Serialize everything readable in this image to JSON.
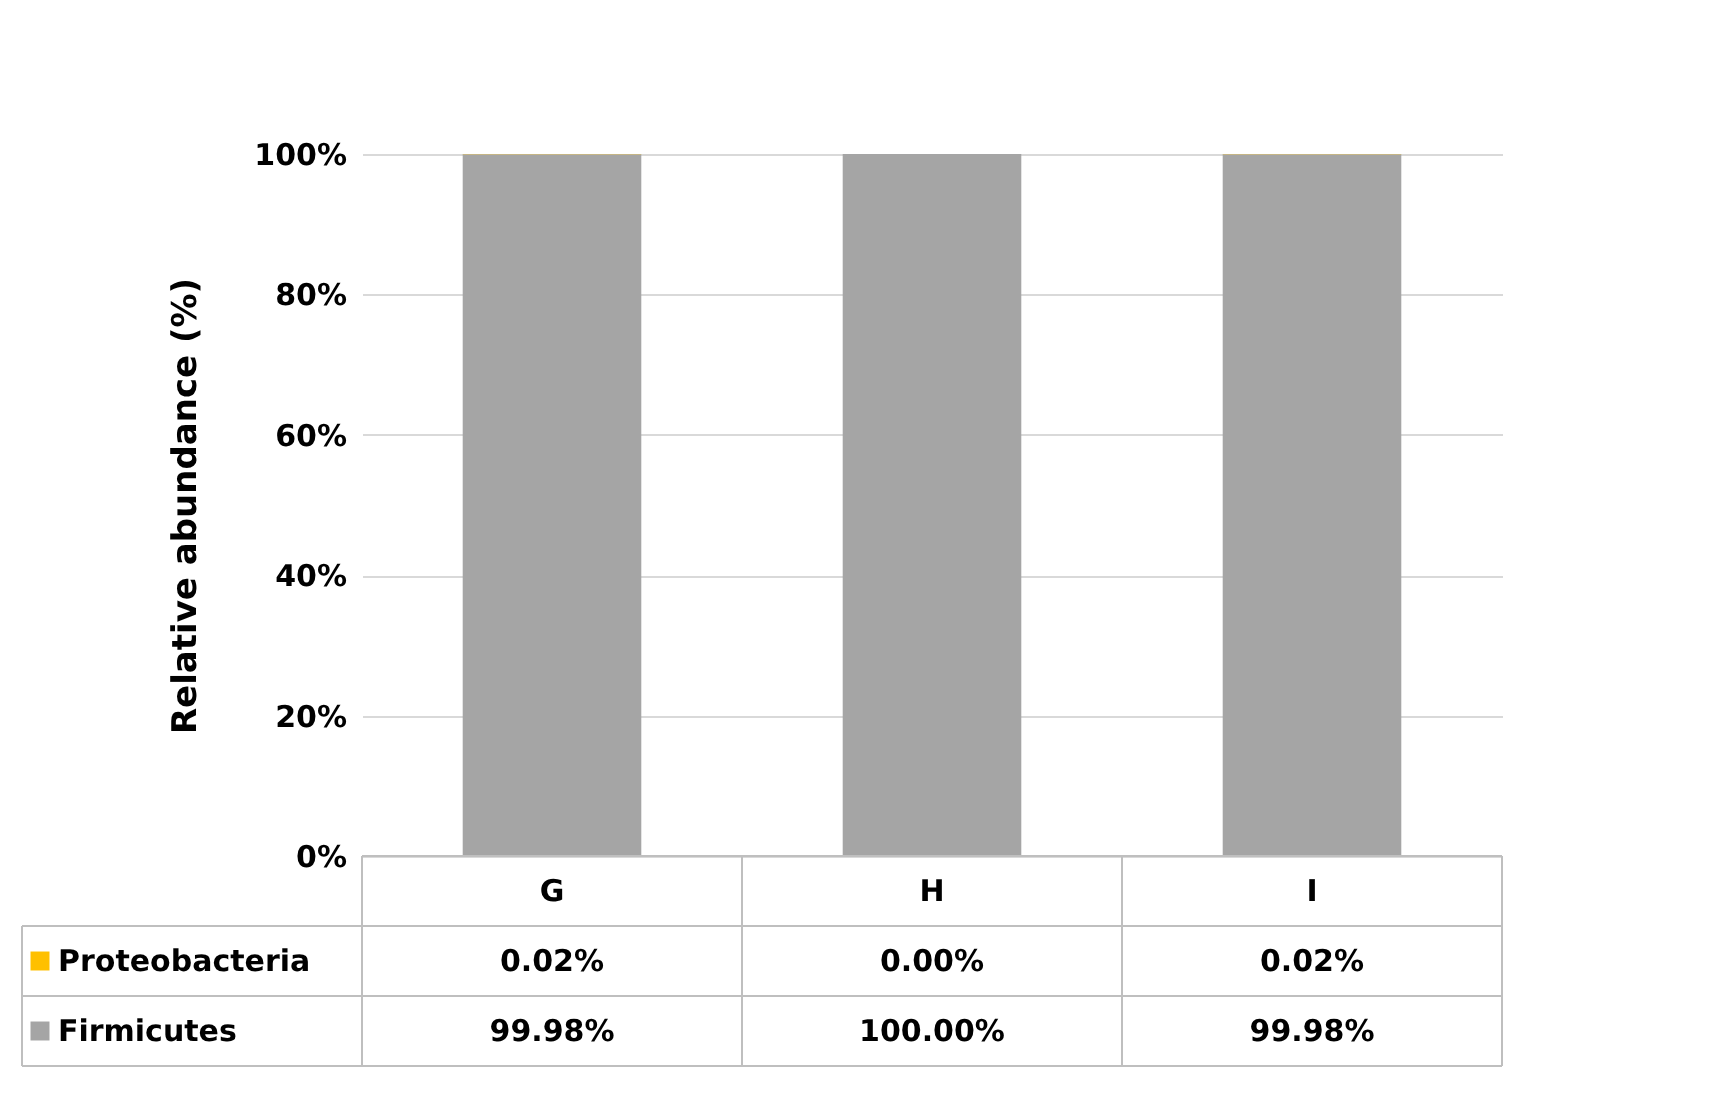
{
  "chart_data": {
    "type": "bar",
    "stacked": true,
    "ylabel": "Relative abundance (%)",
    "categories": [
      "G",
      "H",
      "I"
    ],
    "series": [
      {
        "name": "Firmicutes",
        "color": "#a5a5a5",
        "values": [
          99.98,
          100.0,
          99.98
        ],
        "value_labels": [
          "99.98%",
          "100.00%",
          "99.98%"
        ]
      },
      {
        "name": "Proteobacteria",
        "color": "#ffc000",
        "values": [
          0.02,
          0.0,
          0.02
        ],
        "value_labels": [
          "0.02%",
          "0.00%",
          "0.02%"
        ]
      }
    ],
    "ylim": [
      0,
      100
    ],
    "yticks": [
      {
        "value": 0,
        "label": "0%"
      },
      {
        "value": 20,
        "label": "20%"
      },
      {
        "value": 40,
        "label": "40%"
      },
      {
        "value": 60,
        "label": "60%"
      },
      {
        "value": 80,
        "label": "80%"
      },
      {
        "value": 100,
        "label": "100%"
      }
    ],
    "grid": "y",
    "legend": "bottom"
  }
}
